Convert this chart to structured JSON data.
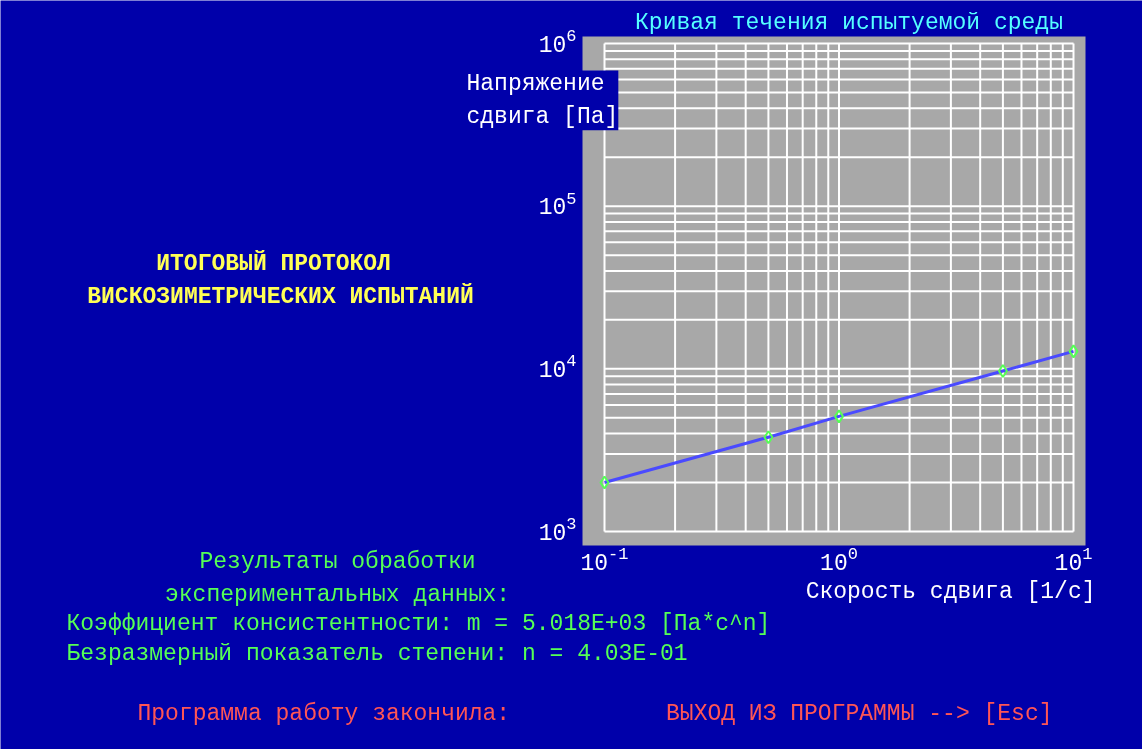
{
  "chart_data": {
    "type": "line",
    "title": "Кривая течения испытуемой среды",
    "xlabel": "Скорость сдвига [1/с]",
    "ylabel": "Напряжение сдвига [Па]",
    "x": [
      0.1,
      0.5,
      1,
      5,
      10
    ],
    "series": [
      {
        "color": "#4a4aff",
        "values": [
          2000,
          3800,
          5100,
          9700,
          12800
        ]
      }
    ],
    "marker": "diamond",
    "log": "xy",
    "grid": true,
    "xlim": [
      0.1,
      10
    ],
    "ylim": [
      1000,
      1000000
    ],
    "xticks": [
      {
        "value": 0.1,
        "label": "10$^{-1}$"
      },
      {
        "value": 1,
        "label": "10$^{0}$"
      },
      {
        "value": 10,
        "label": "10$^{1}$"
      }
    ],
    "yticks": [
      {
        "value": 1000,
        "label": "10$^{3}$"
      },
      {
        "value": 10000,
        "label": "10$^{4}$"
      },
      {
        "value": 100000,
        "label": "10$^{5}$"
      },
      {
        "value": 1000000,
        "label": "10$^{6}$"
      }
    ],
    "annotations": [
      "ИТОГОВЫЙ  ПРОТОКОЛ\nВИСКОЗИМЕТРИЧЕСКИХ ИСПЫТАНИЙ",
      "Результаты обработки\nэкспериментальных данных:",
      "Коэффициент консистентности: m = 5.018E+03 [Па*с^n]",
      "Безразмерный показатель степени: n = 4.03E-01",
      "Программа работу закончила:",
      "ВЫХОД ИЗ ПРОГРАММЫ --> [Esc]"
    ]
  }
}
